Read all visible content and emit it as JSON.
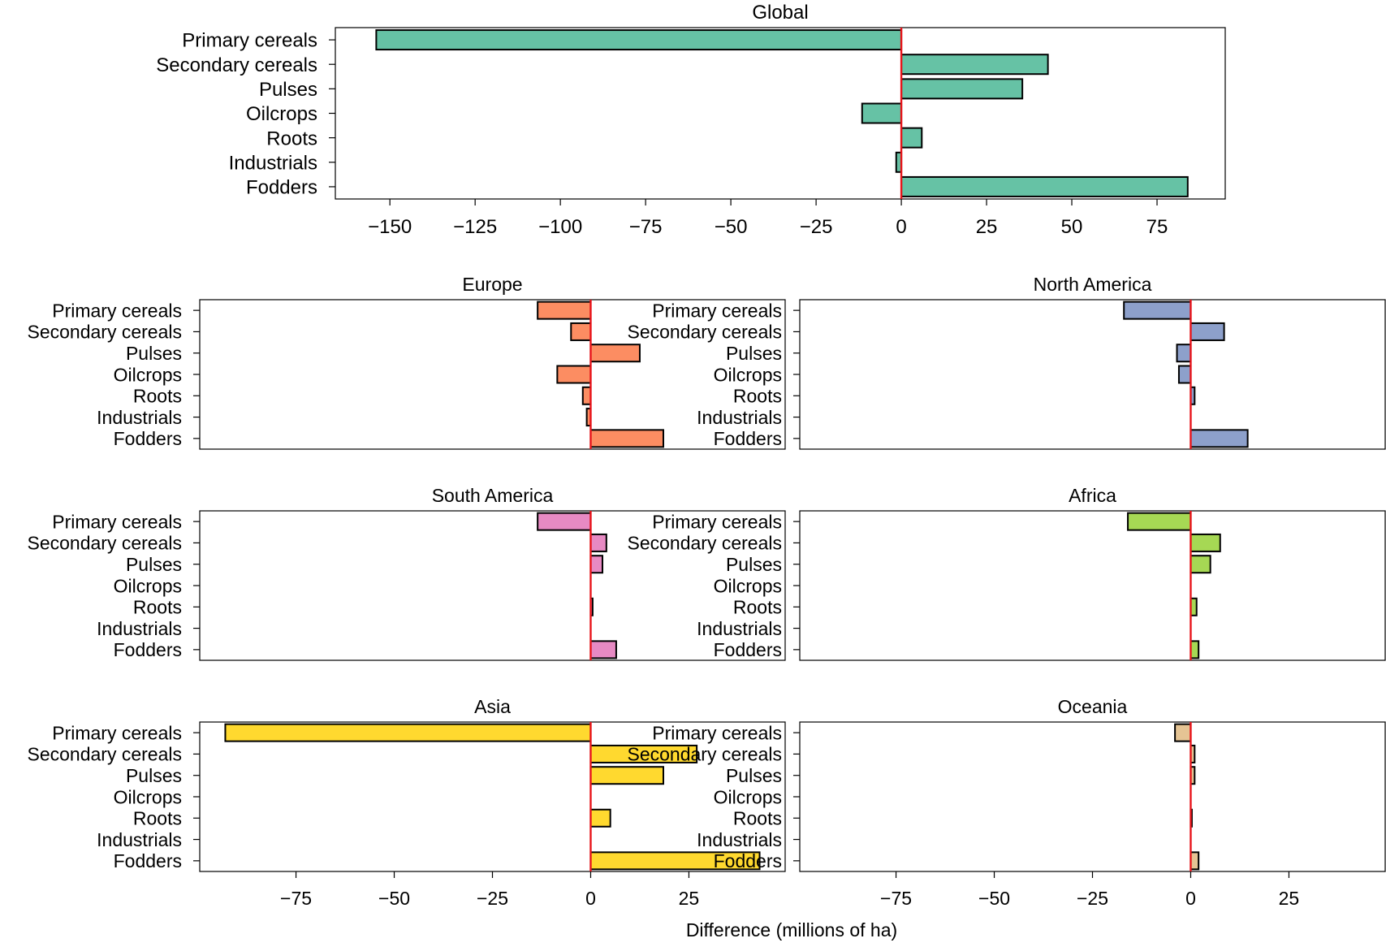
{
  "categories": [
    "Primary cereals",
    "Secondary cereals",
    "Pulses",
    "Oilcrops",
    "Roots",
    "Industrials",
    "Fodders"
  ],
  "xlabel": "Difference (millions of ha)",
  "zero_line_color": "#e8141a",
  "chart_data": [
    {
      "id": "global",
      "type": "bar",
      "orientation": "horizontal",
      "title": "Global",
      "color": "#66c2a5",
      "categories": [
        "Primary cereals",
        "Secondary cereals",
        "Pulses",
        "Oilcrops",
        "Roots",
        "Industrials",
        "Fodders"
      ],
      "values": [
        -154,
        43,
        35.5,
        -11.5,
        6,
        -1.5,
        84
      ],
      "xlim": [
        -166,
        95
      ],
      "xticks": [
        -150,
        -125,
        -100,
        -75,
        -50,
        -25,
        0,
        25,
        50,
        75
      ],
      "tick_labels": [
        "−150",
        "−125",
        "−100",
        "−75",
        "−50",
        "−25",
        "0",
        "25",
        "50",
        "75"
      ]
    },
    {
      "id": "europe",
      "type": "bar",
      "orientation": "horizontal",
      "title": "Europe",
      "color": "#fc8d62",
      "categories": [
        "Primary cereals",
        "Secondary cereals",
        "Pulses",
        "Oilcrops",
        "Roots",
        "Industrials",
        "Fodders"
      ],
      "values": [
        -13.5,
        -5,
        12.5,
        -8.5,
        -2,
        -1,
        18.5
      ],
      "xlim": [
        -99.5,
        49.5
      ],
      "xticks": [],
      "tick_labels": []
    },
    {
      "id": "north-america",
      "type": "bar",
      "orientation": "horizontal",
      "title": "North America",
      "color": "#8da0cb",
      "categories": [
        "Primary cereals",
        "Secondary cereals",
        "Pulses",
        "Oilcrops",
        "Roots",
        "Industrials",
        "Fodders"
      ],
      "values": [
        -17,
        8.5,
        -3.5,
        -3,
        1,
        0,
        14.5
      ],
      "xlim": [
        -99.5,
        49.5
      ],
      "xticks": [],
      "tick_labels": []
    },
    {
      "id": "south-america",
      "type": "bar",
      "orientation": "horizontal",
      "title": "South America",
      "color": "#e78ac3",
      "categories": [
        "Primary cereals",
        "Secondary cereals",
        "Pulses",
        "Oilcrops",
        "Roots",
        "Industrials",
        "Fodders"
      ],
      "values": [
        -13.5,
        4,
        3,
        0,
        0.5,
        0,
        6.5
      ],
      "xlim": [
        -99.5,
        49.5
      ],
      "xticks": [],
      "tick_labels": []
    },
    {
      "id": "africa",
      "type": "bar",
      "orientation": "horizontal",
      "title": "Africa",
      "color": "#a6d854",
      "categories": [
        "Primary cereals",
        "Secondary cereals",
        "Pulses",
        "Oilcrops",
        "Roots",
        "Industrials",
        "Fodders"
      ],
      "values": [
        -16,
        7.5,
        5,
        0,
        1.5,
        0,
        2
      ],
      "xlim": [
        -99.5,
        49.5
      ],
      "xticks": [],
      "tick_labels": []
    },
    {
      "id": "asia",
      "type": "bar",
      "orientation": "horizontal",
      "title": "Asia",
      "color": "#ffd92f",
      "categories": [
        "Primary cereals",
        "Secondary cereals",
        "Pulses",
        "Oilcrops",
        "Roots",
        "Industrials",
        "Fodders"
      ],
      "values": [
        -93,
        27,
        18.5,
        0,
        5,
        0,
        43
      ],
      "xlim": [
        -99.5,
        49.5
      ],
      "xticks": [
        -75,
        -50,
        -25,
        0,
        25
      ],
      "tick_labels": [
        "−75",
        "−50",
        "−25",
        "0",
        "25"
      ]
    },
    {
      "id": "oceania",
      "type": "bar",
      "orientation": "horizontal",
      "title": "Oceania",
      "color": "#e5c494",
      "categories": [
        "Primary cereals",
        "Secondary cereals",
        "Pulses",
        "Oilcrops",
        "Roots",
        "Industrials",
        "Fodders"
      ],
      "values": [
        -4,
        1,
        1,
        0,
        0.3,
        0,
        2
      ],
      "xlim": [
        -99.5,
        49.5
      ],
      "xticks": [
        -75,
        -50,
        -25,
        0,
        25
      ],
      "tick_labels": [
        "−75",
        "−50",
        "−25",
        "0",
        "25"
      ]
    }
  ]
}
